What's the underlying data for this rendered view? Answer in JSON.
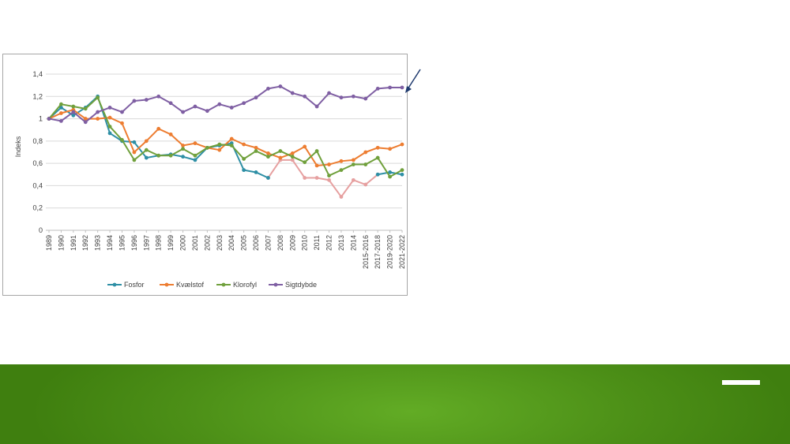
{
  "chart_data": {
    "type": "line",
    "title": "",
    "xlabel": "",
    "ylabel": "Indeks",
    "ylim": [
      0,
      1.4
    ],
    "yticks": [
      "0",
      "0,2",
      "0,4",
      "0,6",
      "0,8",
      "1",
      "1,2",
      "1,4"
    ],
    "grid": true,
    "legend_position": "bottom",
    "categories": [
      "1989",
      "1990",
      "1991",
      "1992",
      "1993",
      "1994",
      "1995",
      "1996",
      "1997",
      "1998",
      "1999",
      "2000",
      "2001",
      "2002",
      "2003",
      "2004",
      "2005",
      "2006",
      "2007",
      "2008",
      "2009",
      "2010",
      "2011",
      "2012",
      "2013",
      "2014",
      "2015-2016",
      "2017-2018",
      "2019-2020",
      "2021-2022"
    ],
    "series": [
      {
        "name": "Fosfor",
        "color": "#2e8fa5",
        "values": [
          1.0,
          1.1,
          1.03,
          1.1,
          1.2,
          0.87,
          0.8,
          0.79,
          0.65,
          0.67,
          0.68,
          0.66,
          0.63,
          0.74,
          0.76,
          0.78,
          0.54,
          0.52,
          0.47,
          null,
          null,
          null,
          null,
          null,
          null,
          null,
          null,
          0.5,
          0.52,
          0.5
        ]
      },
      {
        "name": "Kvælstof",
        "color": "#ed7d31",
        "values": [
          1.0,
          1.05,
          1.08,
          1.0,
          1.0,
          1.01,
          0.96,
          0.7,
          0.8,
          0.91,
          0.86,
          0.76,
          0.78,
          0.74,
          0.72,
          0.82,
          0.77,
          0.74,
          0.69,
          0.65,
          0.69,
          0.75,
          0.58,
          0.59,
          0.62,
          0.63,
          0.7,
          0.74,
          0.73,
          0.77
        ]
      },
      {
        "name": "Klorofyl",
        "color": "#70a03c",
        "values": [
          1.0,
          1.13,
          1.11,
          1.09,
          1.19,
          0.93,
          0.81,
          0.63,
          0.72,
          0.67,
          0.67,
          0.73,
          0.67,
          0.74,
          0.77,
          0.76,
          0.64,
          0.71,
          0.66,
          0.71,
          0.66,
          0.61,
          0.71,
          0.49,
          0.54,
          0.59,
          0.59,
          0.65,
          0.48,
          0.54
        ]
      },
      {
        "name": "Sigtdybde",
        "color": "#7f5fa3",
        "values": [
          1.0,
          0.98,
          1.06,
          0.97,
          1.06,
          1.1,
          1.06,
          1.16,
          1.17,
          1.2,
          1.14,
          1.06,
          1.11,
          1.07,
          1.13,
          1.1,
          1.14,
          1.19,
          1.27,
          1.29,
          1.23,
          1.2,
          1.11,
          1.23,
          1.19,
          1.2,
          1.18,
          1.27,
          1.28,
          1.28
        ]
      }
    ],
    "unlabeled_series": [
      {
        "color": "#e6a0a0",
        "values": [
          null,
          null,
          null,
          null,
          null,
          null,
          null,
          null,
          null,
          null,
          null,
          null,
          null,
          null,
          null,
          null,
          null,
          null,
          0.47,
          0.63,
          0.63,
          0.47,
          0.47,
          0.45,
          0.3,
          0.45,
          0.41,
          0.5,
          null,
          null
        ]
      }
    ]
  },
  "decor": {
    "arrow_color": "#1f3a6e",
    "band_color": "#4c8f17"
  }
}
